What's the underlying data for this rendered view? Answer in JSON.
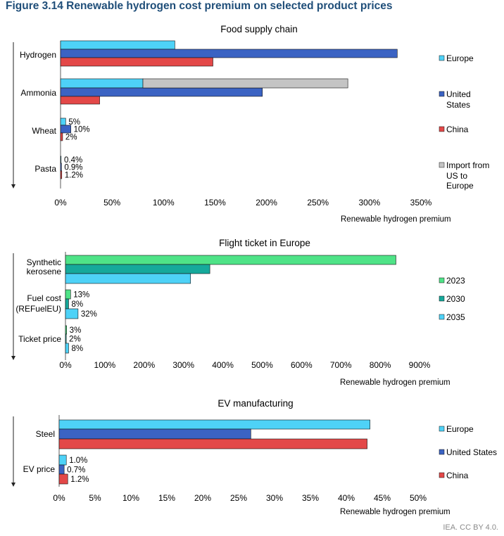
{
  "figure_title": "Figure 3.14  Renewable hydrogen cost premium on selected product prices",
  "credit": "IEA. CC BY 4.0.",
  "colors": {
    "europe": "#4ed2f7",
    "united_states": "#3b63c3",
    "china": "#e34848",
    "import": "#c4c4c4",
    "y2023": "#4fe387",
    "y2030": "#16a99b",
    "y2035": "#4ed2f7"
  },
  "chart_data": [
    {
      "type": "bar",
      "title": "Food supply chain",
      "xlabel": "Renewable hydrogen premium",
      "xlim": [
        0,
        350
      ],
      "xticks": [
        0,
        50,
        100,
        150,
        200,
        250,
        300,
        350
      ],
      "tick_suffix": "%",
      "categories": [
        "Hydrogen",
        "Ammonia",
        "Wheat",
        "Pasta"
      ],
      "series": [
        {
          "name": "Europe",
          "color_key": "europe",
          "values": [
            111,
            80,
            5,
            0.4
          ],
          "labels": [
            null,
            null,
            "5%",
            "0.4%"
          ]
        },
        {
          "name": "United States",
          "color_key": "united_states",
          "values": [
            327,
            196,
            10,
            0.9
          ],
          "labels": [
            null,
            null,
            "10%",
            "0.9%"
          ]
        },
        {
          "name": "China",
          "color_key": "china",
          "values": [
            148,
            38,
            2,
            1.2
          ],
          "labels": [
            null,
            null,
            "2%",
            "1.2%"
          ]
        },
        {
          "name": "Import from US to Europe",
          "color_key": "import",
          "values": [
            null,
            279,
            null,
            null
          ],
          "labels": [
            null,
            null,
            null,
            null
          ],
          "stack_on": 0
        }
      ],
      "legend": [
        {
          "label": "Europe",
          "color_key": "europe"
        },
        {
          "label": "United States",
          "color_key": "united_states"
        },
        {
          "label": "China",
          "color_key": "china"
        },
        {
          "label": "Import from US to Europe",
          "color_key": "import"
        }
      ]
    },
    {
      "type": "bar",
      "title": "Flight ticket in Europe",
      "xlabel": "Renewable hydrogen premium",
      "xlim": [
        0,
        900
      ],
      "xticks": [
        0,
        100,
        200,
        300,
        400,
        500,
        600,
        700,
        800,
        900
      ],
      "tick_suffix": "%",
      "categories": [
        "Synthetic kerosene",
        "Fuel cost (REFuelEU)",
        "Ticket price"
      ],
      "series": [
        {
          "name": "2023",
          "color_key": "y2023",
          "values": [
            840,
            13,
            3
          ],
          "labels": [
            null,
            "13%",
            "3%"
          ]
        },
        {
          "name": "2030",
          "color_key": "y2030",
          "values": [
            367,
            8,
            2
          ],
          "labels": [
            null,
            "8%",
            "2%"
          ]
        },
        {
          "name": "2035",
          "color_key": "y2035",
          "values": [
            318,
            32,
            8
          ],
          "labels": [
            null,
            "32%",
            "8%"
          ]
        }
      ],
      "legend": [
        {
          "label": "2023",
          "color_key": "y2023"
        },
        {
          "label": "2030",
          "color_key": "y2030"
        },
        {
          "label": "2035",
          "color_key": "y2035"
        }
      ]
    },
    {
      "type": "bar",
      "title": "EV manufacturing",
      "xlabel": "Renewable hydrogen premium",
      "xlim": [
        0,
        50
      ],
      "xticks": [
        0,
        5,
        10,
        15,
        20,
        25,
        30,
        35,
        40,
        45,
        50
      ],
      "tick_suffix": "%",
      "categories": [
        "Steel",
        "EV price"
      ],
      "series": [
        {
          "name": "Europe",
          "color_key": "europe",
          "values": [
            43.3,
            1.0
          ],
          "labels": [
            null,
            "1.0%"
          ]
        },
        {
          "name": "United States",
          "color_key": "united_states",
          "values": [
            26.7,
            0.7
          ],
          "labels": [
            null,
            "0.7%"
          ]
        },
        {
          "name": "China",
          "color_key": "china",
          "values": [
            42.9,
            1.2
          ],
          "labels": [
            null,
            "1.2%"
          ]
        }
      ],
      "legend": [
        {
          "label": "Europe",
          "color_key": "europe"
        },
        {
          "label": "United States",
          "color_key": "united_states"
        },
        {
          "label": "China",
          "color_key": "china"
        }
      ]
    }
  ]
}
